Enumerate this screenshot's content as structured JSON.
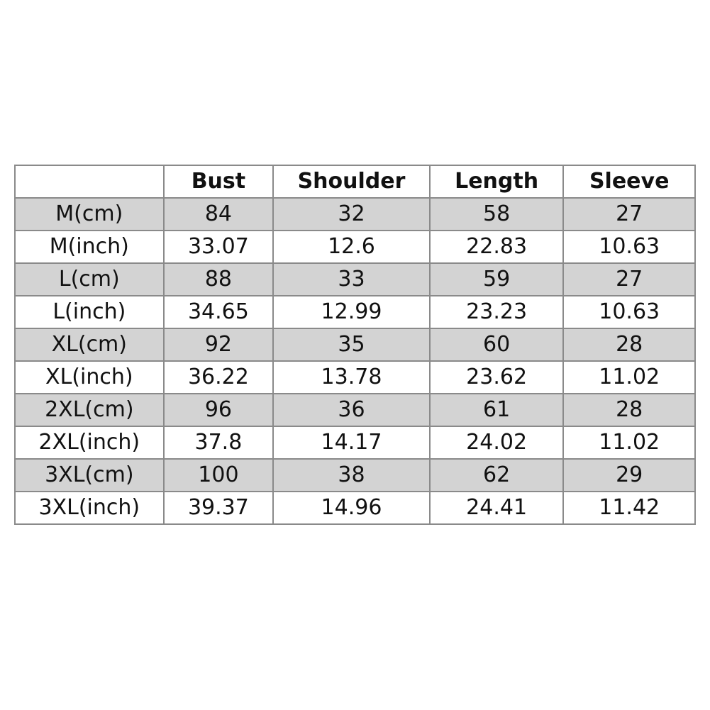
{
  "table": {
    "headers": [
      "",
      "Bust",
      "Shoulder",
      "Length",
      "Sleeve"
    ],
    "rows": [
      [
        "M(cm)",
        "84",
        "32",
        "58",
        "27"
      ],
      [
        "M(inch)",
        "33.07",
        "12.6",
        "22.83",
        "10.63"
      ],
      [
        "L(cm)",
        "88",
        "33",
        "59",
        "27"
      ],
      [
        "L(inch)",
        "34.65",
        "12.99",
        "23.23",
        "10.63"
      ],
      [
        "XL(cm)",
        "92",
        "35",
        "60",
        "28"
      ],
      [
        "XL(inch)",
        "36.22",
        "13.78",
        "23.62",
        "11.02"
      ],
      [
        "2XL(cm)",
        "96",
        "36",
        "61",
        "28"
      ],
      [
        "2XL(inch)",
        "37.8",
        "14.17",
        "24.02",
        "11.02"
      ],
      [
        "3XL(cm)",
        "100",
        "38",
        "62",
        "29"
      ],
      [
        "3XL(inch)",
        "39.37",
        "14.96",
        "24.41",
        "11.42"
      ]
    ],
    "shade_color": "#d3d3d3"
  }
}
